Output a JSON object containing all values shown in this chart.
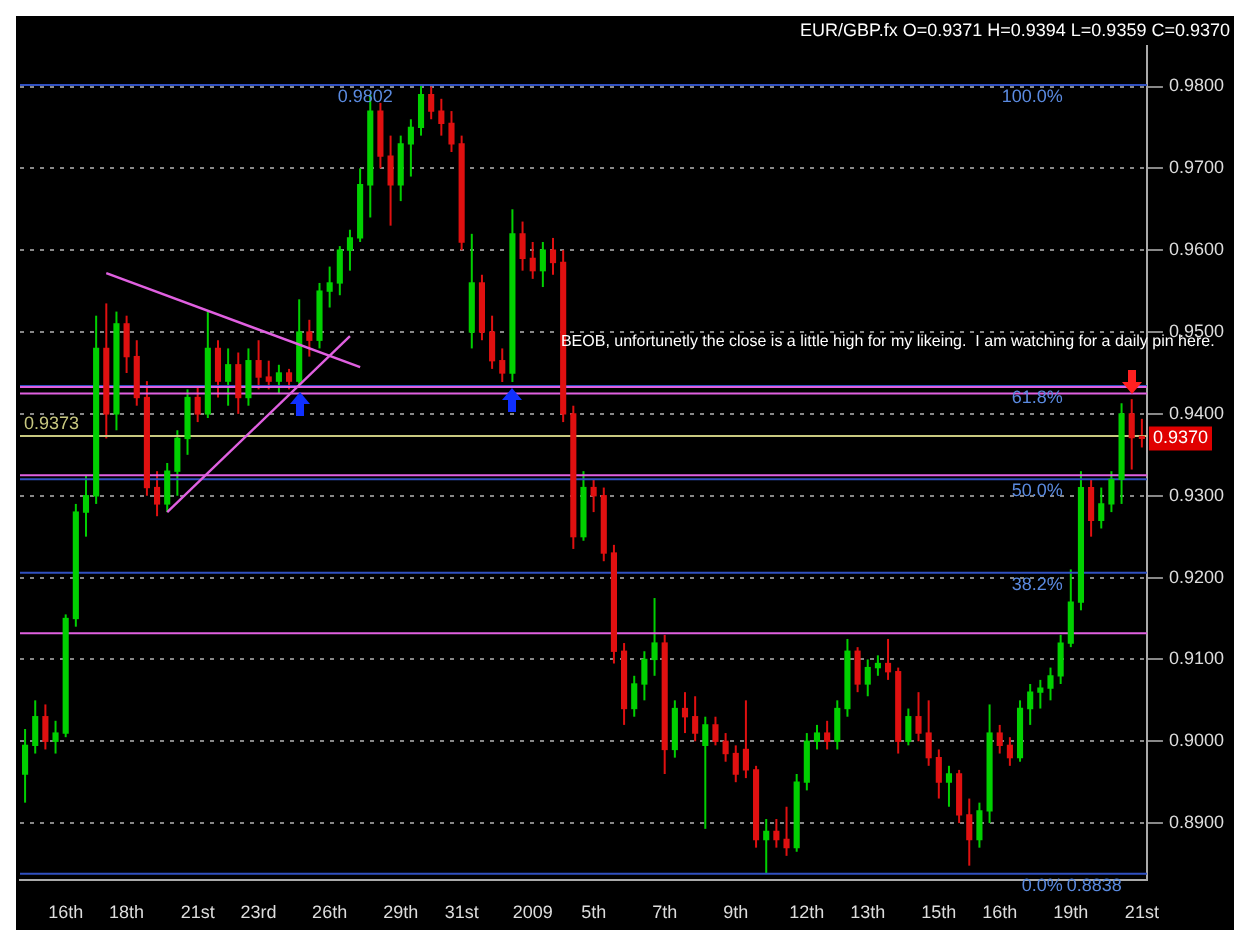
{
  "chart_data": {
    "type": "candlestick",
    "title": "EUR/GBP.fx O=0.9371 H=0.9394 L=0.9359 C=0.9370",
    "categories": [
      null,
      null,
      null,
      null,
      "16th",
      null,
      null,
      null,
      null,
      null,
      "18th",
      null,
      null,
      null,
      null,
      null,
      null,
      "21st",
      null,
      null,
      null,
      null,
      null,
      "23rd",
      null,
      null,
      null,
      null,
      null,
      null,
      "26th",
      null,
      null,
      null,
      null,
      null,
      null,
      "29th",
      null,
      null,
      null,
      null,
      null,
      "31st",
      null,
      null,
      null,
      null,
      null,
      null,
      "2009",
      null,
      null,
      null,
      null,
      null,
      "5th",
      null,
      null,
      null,
      null,
      null,
      null,
      "7th",
      null,
      null,
      null,
      null,
      null,
      null,
      "9th",
      null,
      null,
      null,
      null,
      null,
      null,
      "12th",
      null,
      null,
      null,
      null,
      null,
      "13th",
      null,
      null,
      null,
      null,
      null,
      null,
      "15th",
      null,
      null,
      null,
      null,
      null,
      "16th",
      null,
      null,
      null,
      null,
      null,
      null,
      "19th",
      null,
      null,
      null,
      null,
      null,
      null,
      "21st"
    ],
    "ohlc": [
      [
        0.896,
        0.9015,
        0.8925,
        0.8995
      ],
      [
        0.8995,
        0.905,
        0.8985,
        0.903
      ],
      [
        0.903,
        0.9045,
        0.899,
        0.9
      ],
      [
        0.9,
        0.9025,
        0.8985,
        0.901
      ],
      [
        0.901,
        0.9155,
        0.9005,
        0.915
      ],
      [
        0.915,
        0.929,
        0.914,
        0.928
      ],
      [
        0.928,
        0.9325,
        0.925,
        0.93
      ],
      [
        0.93,
        0.952,
        0.929,
        0.948
      ],
      [
        0.948,
        0.9535,
        0.937,
        0.94
      ],
      [
        0.94,
        0.9525,
        0.938,
        0.951
      ],
      [
        0.951,
        0.952,
        0.945,
        0.947
      ],
      [
        0.947,
        0.949,
        0.941,
        0.942
      ],
      [
        0.942,
        0.944,
        0.93,
        0.931
      ],
      [
        0.931,
        0.933,
        0.9275,
        0.929
      ],
      [
        0.929,
        0.934,
        0.928,
        0.933
      ],
      [
        0.933,
        0.938,
        0.93,
        0.937
      ],
      [
        0.937,
        0.943,
        0.935,
        0.942
      ],
      [
        0.942,
        0.9435,
        0.939,
        0.94
      ],
      [
        0.94,
        0.9525,
        0.9395,
        0.948
      ],
      [
        0.948,
        0.949,
        0.942,
        0.944
      ],
      [
        0.944,
        0.948,
        0.941,
        0.946
      ],
      [
        0.946,
        0.9475,
        0.94,
        0.942
      ],
      [
        0.942,
        0.948,
        0.941,
        0.9465
      ],
      [
        0.9465,
        0.949,
        0.943,
        0.9445
      ],
      [
        0.9445,
        0.9465,
        0.943,
        0.944
      ],
      [
        0.944,
        0.946,
        0.9425,
        0.945
      ],
      [
        0.945,
        0.9455,
        0.943,
        0.944
      ],
      [
        0.944,
        0.954,
        0.9433,
        0.95
      ],
      [
        0.95,
        0.9515,
        0.947,
        0.949
      ],
      [
        0.949,
        0.956,
        0.948,
        0.955
      ],
      [
        0.955,
        0.958,
        0.953,
        0.956
      ],
      [
        0.956,
        0.9605,
        0.9545,
        0.96
      ],
      [
        0.96,
        0.9625,
        0.9575,
        0.9615
      ],
      [
        0.9615,
        0.97,
        0.961,
        0.968
      ],
      [
        0.968,
        0.979,
        0.964,
        0.977
      ],
      [
        0.977,
        0.978,
        0.97,
        0.9715
      ],
      [
        0.9715,
        0.974,
        0.963,
        0.968
      ],
      [
        0.968,
        0.974,
        0.966,
        0.973
      ],
      [
        0.973,
        0.976,
        0.969,
        0.975
      ],
      [
        0.975,
        0.9802,
        0.974,
        0.979
      ],
      [
        0.979,
        0.98,
        0.976,
        0.977
      ],
      [
        0.977,
        0.9785,
        0.974,
        0.9755
      ],
      [
        0.9755,
        0.977,
        0.972,
        0.973
      ],
      [
        0.973,
        0.974,
        0.96,
        0.961
      ],
      [
        0.95,
        0.962,
        0.948,
        0.956
      ],
      [
        0.956,
        0.957,
        0.949,
        0.95
      ],
      [
        0.95,
        0.952,
        0.9455,
        0.9465
      ],
      [
        0.9465,
        0.948,
        0.9439,
        0.945
      ],
      [
        0.945,
        0.965,
        0.9439,
        0.962
      ],
      [
        0.962,
        0.9635,
        0.9575,
        0.959
      ],
      [
        0.959,
        0.961,
        0.9565,
        0.9575
      ],
      [
        0.9575,
        0.961,
        0.9555,
        0.96
      ],
      [
        0.96,
        0.9615,
        0.957,
        0.9585
      ],
      [
        0.9585,
        0.96,
        0.939,
        0.94
      ],
      [
        0.94,
        0.941,
        0.9235,
        0.925
      ],
      [
        0.925,
        0.933,
        0.9245,
        0.931
      ],
      [
        0.931,
        0.932,
        0.928,
        0.93
      ],
      [
        0.93,
        0.931,
        0.922,
        0.923
      ],
      [
        0.923,
        0.924,
        0.9095,
        0.911
      ],
      [
        0.911,
        0.912,
        0.902,
        0.904
      ],
      [
        0.904,
        0.908,
        0.903,
        0.907
      ],
      [
        0.907,
        0.911,
        0.905,
        0.91
      ],
      [
        0.91,
        0.9175,
        0.908,
        0.912
      ],
      [
        0.912,
        0.913,
        0.896,
        0.899
      ],
      [
        0.899,
        0.905,
        0.898,
        0.904
      ],
      [
        0.904,
        0.906,
        0.901,
        0.903
      ],
      [
        0.903,
        0.9055,
        0.9,
        0.901
      ],
      [
        0.8995,
        0.903,
        0.8893,
        0.902
      ],
      [
        0.902,
        0.903,
        0.8995,
        0.9
      ],
      [
        0.9,
        0.901,
        0.8975,
        0.8985
      ],
      [
        0.8985,
        0.8995,
        0.895,
        0.896
      ],
      [
        0.899,
        0.905,
        0.8955,
        0.8965
      ],
      [
        0.8965,
        0.897,
        0.887,
        0.888
      ],
      [
        0.888,
        0.8905,
        0.8838,
        0.889
      ],
      [
        0.889,
        0.8905,
        0.887,
        0.888
      ],
      [
        0.888,
        0.892,
        0.886,
        0.887
      ],
      [
        0.887,
        0.896,
        0.8865,
        0.895
      ],
      [
        0.895,
        0.901,
        0.894,
        0.9
      ],
      [
        0.9,
        0.902,
        0.899,
        0.901
      ],
      [
        0.901,
        0.9025,
        0.899,
        0.9
      ],
      [
        0.9,
        0.905,
        0.899,
        0.904
      ],
      [
        0.904,
        0.9125,
        0.903,
        0.911
      ],
      [
        0.911,
        0.9115,
        0.906,
        0.907
      ],
      [
        0.907,
        0.91,
        0.9055,
        0.909
      ],
      [
        0.909,
        0.9105,
        0.908,
        0.9095
      ],
      [
        0.9095,
        0.9125,
        0.9075,
        0.9085
      ],
      [
        0.9085,
        0.909,
        0.8985,
        0.9
      ],
      [
        0.9,
        0.904,
        0.8995,
        0.903
      ],
      [
        0.903,
        0.906,
        0.9,
        0.901
      ],
      [
        0.901,
        0.905,
        0.897,
        0.898
      ],
      [
        0.898,
        0.899,
        0.893,
        0.895
      ],
      [
        0.895,
        0.897,
        0.892,
        0.896
      ],
      [
        0.896,
        0.8965,
        0.89,
        0.891
      ],
      [
        0.891,
        0.893,
        0.8848,
        0.888
      ],
      [
        0.888,
        0.8925,
        0.887,
        0.8915
      ],
      [
        0.8915,
        0.9045,
        0.89,
        0.901
      ],
      [
        0.901,
        0.902,
        0.8985,
        0.8995
      ],
      [
        0.8995,
        0.9005,
        0.897,
        0.898
      ],
      [
        0.898,
        0.905,
        0.8975,
        0.904
      ],
      [
        0.904,
        0.907,
        0.902,
        0.906
      ],
      [
        0.906,
        0.9075,
        0.904,
        0.9065
      ],
      [
        0.9065,
        0.909,
        0.905,
        0.908
      ],
      [
        0.908,
        0.913,
        0.907,
        0.912
      ],
      [
        0.912,
        0.921,
        0.9115,
        0.917
      ],
      [
        0.917,
        0.933,
        0.916,
        0.931
      ],
      [
        0.931,
        0.932,
        0.925,
        0.927
      ],
      [
        0.927,
        0.931,
        0.926,
        0.929
      ],
      [
        0.929,
        0.933,
        0.928,
        0.932
      ],
      [
        0.932,
        0.9413,
        0.929,
        0.94
      ],
      [
        0.94,
        0.9418,
        0.9332,
        0.9371
      ],
      [
        0.9371,
        0.9394,
        0.9359,
        0.937
      ]
    ],
    "colors": [
      "#00d000",
      "#00d000",
      "#e01010",
      "#00d000",
      "#00d000",
      "#00d000",
      "#00d000",
      "#00d000",
      "#e01010",
      "#00d000",
      "#e01010",
      "#e01010",
      "#e01010",
      "#e01010",
      "#00d000",
      "#00d000",
      "#00d000",
      "#e01010",
      "#00d000",
      "#e01010",
      "#00d000",
      "#e01010",
      "#00d000",
      "#e01010",
      "#e01010",
      "#00d000",
      "#e01010",
      "#00d000",
      "#e01010",
      "#00d000",
      "#00d000",
      "#00d000",
      "#00d000",
      "#00d000",
      "#00d000",
      "#e01010",
      "#e01010",
      "#00d000",
      "#00d000",
      "#00d000",
      "#e01010",
      "#e01010",
      "#e01010",
      "#e01010",
      "#00d000",
      "#e01010",
      "#e01010",
      "#e01010",
      "#00d000",
      "#e01010",
      "#e01010",
      "#00d000",
      "#e01010",
      "#e01010",
      "#e01010",
      "#00d000",
      "#e01010",
      "#e01010",
      "#e01010",
      "#e01010",
      "#00d000",
      "#00d000",
      "#00d000",
      "#e01010",
      "#00d000",
      "#e01010",
      "#e01010",
      "#00d000",
      "#e01010",
      "#e01010",
      "#e01010",
      "#e01010",
      "#e01010",
      "#00d000",
      "#e01010",
      "#e01010",
      "#00d000",
      "#00d000",
      "#00d000",
      "#e01010",
      "#00d000",
      "#00d000",
      "#e01010",
      "#00d000",
      "#00d000",
      "#e01010",
      "#e01010",
      "#00d000",
      "#e01010",
      "#e01010",
      "#e01010",
      "#00d000",
      "#e01010",
      "#e01010",
      "#00d000",
      "#00d000",
      "#e01010",
      "#e01010",
      "#00d000",
      "#00d000",
      "#00d000",
      "#00d000",
      "#00d000",
      "#00d000",
      "#00d000",
      "#e01010",
      "#00d000",
      "#00d000",
      "#00d000",
      "#e01010",
      "#e01010"
    ],
    "series": [
      {
        "type": "line",
        "color": "#e060e0",
        "values": [
          null,
          null,
          null,
          null,
          null,
          null,
          null,
          null,
          0.9572,
          null,
          null,
          null,
          null,
          null,
          null,
          null,
          null,
          null,
          null,
          null,
          null,
          null,
          null,
          null,
          null,
          null,
          null,
          null,
          null,
          null,
          null,
          null,
          null,
          0.9457,
          null,
          null,
          null,
          null,
          null,
          null,
          null,
          null,
          null,
          null,
          null,
          null,
          null,
          null,
          null,
          null,
          null,
          null,
          null,
          null,
          null,
          null,
          null,
          null,
          null,
          null,
          null,
          null,
          null,
          null,
          null,
          null,
          null,
          null,
          null,
          null,
          null,
          null,
          null,
          null,
          null,
          null,
          null,
          null,
          null,
          null,
          null,
          null,
          null,
          null,
          null,
          null,
          null,
          null,
          null,
          null,
          null,
          null,
          null,
          null,
          null,
          null,
          null,
          null,
          null,
          null,
          null,
          null,
          null,
          null,
          null,
          null,
          null,
          null,
          null,
          null,
          null
        ]
      },
      {
        "type": "line",
        "color": "#e060e0",
        "values": [
          null,
          null,
          null,
          null,
          null,
          null,
          null,
          null,
          null,
          null,
          null,
          null,
          null,
          null,
          0.928,
          null,
          null,
          null,
          null,
          null,
          null,
          null,
          null,
          null,
          null,
          null,
          null,
          null,
          null,
          null,
          null,
          null,
          0.9495,
          null,
          null,
          null,
          null,
          null,
          null,
          null,
          null,
          null,
          null,
          null,
          null,
          null,
          null,
          null,
          null,
          null,
          null,
          null,
          null,
          null,
          null,
          null,
          null,
          null,
          null,
          null,
          null,
          null,
          null,
          null,
          null,
          null,
          null,
          null,
          null,
          null,
          null,
          null,
          null,
          null,
          null,
          null,
          null,
          null,
          null,
          null,
          null,
          null,
          null,
          null,
          null,
          null,
          null,
          null,
          null,
          null,
          null,
          null,
          null,
          null,
          null,
          null,
          null,
          null,
          null,
          null,
          null,
          null,
          null,
          null,
          null,
          null,
          null,
          null,
          null,
          null,
          null
        ]
      }
    ],
    "ylim": [
      0.883,
      0.985
    ],
    "yticks": [
      {
        "value": 0.89,
        "label": "0.8900"
      },
      {
        "value": 0.9,
        "label": "0.9000"
      },
      {
        "value": 0.91,
        "label": "0.9100"
      },
      {
        "value": 0.92,
        "label": "0.9200"
      },
      {
        "value": 0.93,
        "label": "0.9300"
      },
      {
        "value": 0.94,
        "label": "0.9400"
      },
      {
        "value": 0.95,
        "label": "0.9500"
      },
      {
        "value": 0.96,
        "label": "0.9600"
      },
      {
        "value": 0.97,
        "label": "0.9700"
      },
      {
        "value": 0.98,
        "label": "0.9800"
      }
    ],
    "grid": "y",
    "legend": false,
    "ref_lines": [
      {
        "axis": "y",
        "value": 0.9802,
        "color": "#3050c0"
      },
      {
        "axis": "y",
        "value": 0.9434,
        "color": "#3050c0"
      },
      {
        "axis": "y",
        "value": 0.932,
        "color": "#3050c0"
      },
      {
        "axis": "y",
        "value": 0.9206,
        "color": "#3050c0"
      },
      {
        "axis": "y",
        "value": 0.8838,
        "color": "#3050c0"
      },
      {
        "axis": "y",
        "value": 0.9373,
        "label": "0.9373",
        "color": "#c8c880"
      },
      {
        "axis": "y",
        "value": 0.9433,
        "color": "#e060e0"
      },
      {
        "axis": "y",
        "value": 0.9425,
        "color": "#e060e0"
      },
      {
        "axis": "y",
        "value": 0.9325,
        "color": "#e060e0"
      },
      {
        "axis": "y",
        "value": 0.9132,
        "color": "#e060e0"
      }
    ],
    "annotations": [
      "BEOB, unfortunetly the close is a little high for my likeing.  I am watching for a daily pin here.",
      {
        "text": "0.9802",
        "x": "29th",
        "y": 0.9802
      },
      {
        "text": "100.0%",
        "x": "19th",
        "y": 0.9802
      },
      {
        "text": "61.8%",
        "x": "19th",
        "y": 0.9434
      },
      {
        "text": "50.0%",
        "x": "19th",
        "y": 0.932
      },
      {
        "text": "38.2%",
        "x": "19th",
        "y": 0.9206
      },
      {
        "text": "0.0%",
        "x": "19th",
        "y": 0.8838
      },
      {
        "text": "0.8838",
        "x": "19th",
        "y": 0.8838
      },
      {
        "text": "0.9370",
        "y": 0.937
      }
    ]
  }
}
